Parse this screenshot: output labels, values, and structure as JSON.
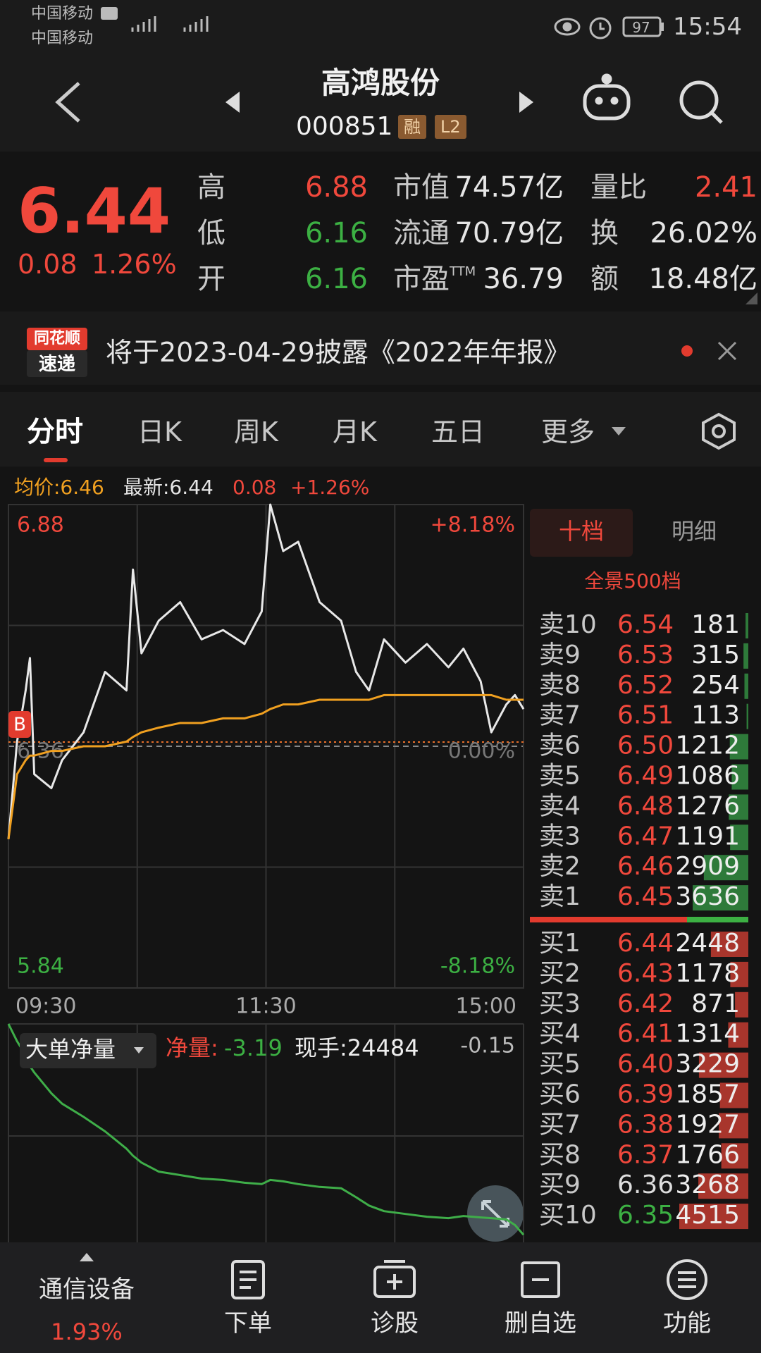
{
  "status_bar": {
    "carrier1": "中国移动",
    "carrier2": "中国移动",
    "battery": "97",
    "time": "15:54"
  },
  "header": {
    "title": "高鸿股份",
    "code": "000851",
    "badges": [
      "融",
      "L2"
    ]
  },
  "quote": {
    "price": "6.44",
    "change": "0.08",
    "change_pct": "1.26%",
    "rows": [
      [
        {
          "label": "高",
          "value": "6.88"
        },
        {
          "label": "市值",
          "value": "74.57亿"
        },
        {
          "label": "量比",
          "value": "2.41"
        }
      ],
      [
        {
          "label": "低",
          "value": "6.16"
        },
        {
          "label": "流通",
          "value": "70.79亿"
        },
        {
          "label": "换",
          "value": "26.02%"
        }
      ],
      [
        {
          "label": "开",
          "value": "6.16"
        },
        {
          "label": "市盈",
          "value": "36.79",
          "sup": "TTM"
        },
        {
          "label": "额",
          "value": "18.48亿"
        }
      ]
    ]
  },
  "notice": {
    "badge_top": "同花顺",
    "badge_bottom": "速递",
    "text": "将于2023-04-29披露《2022年年报》"
  },
  "tabs": [
    "分时",
    "日K",
    "周K",
    "月K",
    "五日",
    "更多"
  ],
  "chart_header": {
    "avg": "均价:6.46",
    "latest": "最新:6.44",
    "change": "0.08",
    "change_pct": "+1.26%"
  },
  "chart_data": [
    {
      "type": "line",
      "x": [
        "09:30",
        "09:34",
        "09:38",
        "09:40",
        "09:42",
        "09:50",
        "09:55",
        "10:05",
        "10:15",
        "10:25",
        "10:28",
        "10:32",
        "10:40",
        "10:50",
        "11:00",
        "11:10",
        "11:20",
        "11:28",
        "13:02",
        "13:08",
        "13:15",
        "13:25",
        "13:35",
        "13:42",
        "13:48",
        "13:55",
        "14:05",
        "14:15",
        "14:25",
        "14:32",
        "14:40",
        "14:45",
        "14:52",
        "14:56",
        "15:00"
      ],
      "series": [
        {
          "color": "#e8e8e8",
          "values": [
            6.16,
            6.37,
            6.48,
            6.55,
            6.3,
            6.27,
            6.33,
            6.39,
            6.52,
            6.48,
            6.74,
            6.56,
            6.63,
            6.67,
            6.59,
            6.61,
            6.58,
            6.65,
            6.88,
            6.78,
            6.8,
            6.67,
            6.63,
            6.52,
            6.48,
            6.59,
            6.54,
            6.58,
            6.53,
            6.57,
            6.5,
            6.39,
            6.45,
            6.47,
            6.44
          ]
        },
        {
          "color": "#f0a020",
          "values": [
            6.16,
            6.3,
            6.33,
            6.34,
            6.34,
            6.35,
            6.35,
            6.36,
            6.36,
            6.37,
            6.38,
            6.39,
            6.4,
            6.41,
            6.41,
            6.42,
            6.42,
            6.43,
            6.44,
            6.45,
            6.45,
            6.46,
            6.46,
            6.46,
            6.46,
            6.47,
            6.47,
            6.47,
            6.47,
            6.47,
            6.47,
            6.47,
            6.46,
            6.46,
            6.46
          ]
        }
      ],
      "ylim": [
        5.84,
        6.88
      ],
      "yticks": [
        5.84,
        6.1,
        6.36,
        6.62,
        6.88
      ],
      "prev_close": 6.36,
      "pct_labels": [
        "+8.18%",
        "0.00%",
        "-8.18%"
      ],
      "xticks": [
        "09:30",
        "11:30",
        "15:00"
      ],
      "marker": "B"
    },
    {
      "type": "line",
      "title": "大单净量",
      "net_label": "净量:",
      "net_value": "-3.19",
      "hand": "现手:24484",
      "x": [
        "09:30",
        "09:34",
        "09:38",
        "09:40",
        "09:42",
        "09:50",
        "09:55",
        "10:05",
        "10:15",
        "10:25",
        "10:28",
        "10:32",
        "10:40",
        "10:50",
        "11:00",
        "11:10",
        "11:20",
        "11:28",
        "13:02",
        "13:08",
        "13:15",
        "13:25",
        "13:35",
        "13:42",
        "13:48",
        "13:55",
        "14:05",
        "14:15",
        "14:25",
        "14:32",
        "14:40",
        "14:45",
        "14:52",
        "14:56",
        "15:00"
      ],
      "series": [
        {
          "color": "#3fae49",
          "values": [
            -0.15,
            -0.4,
            -0.6,
            -0.76,
            -0.85,
            -1.15,
            -1.3,
            -1.49,
            -1.7,
            -1.95,
            -2.05,
            -2.15,
            -2.28,
            -2.33,
            -2.38,
            -2.4,
            -2.44,
            -2.46,
            -2.4,
            -2.42,
            -2.46,
            -2.5,
            -2.52,
            -2.65,
            -2.77,
            -2.85,
            -2.89,
            -2.93,
            -2.95,
            -2.92,
            -2.94,
            -2.95,
            -2.97,
            -3.05,
            -3.19
          ]
        }
      ],
      "ylim": [
        -3.3,
        -0.15
      ]
    }
  ],
  "order_book": {
    "tabs": [
      "十档",
      "明细"
    ],
    "depth_link": "全景500档",
    "asks": [
      {
        "label": "卖10",
        "price": "6.54",
        "volume": 181
      },
      {
        "label": "卖9",
        "price": "6.53",
        "volume": 315
      },
      {
        "label": "卖8",
        "price": "6.52",
        "volume": 254
      },
      {
        "label": "卖7",
        "price": "6.51",
        "volume": 113
      },
      {
        "label": "卖6",
        "price": "6.50",
        "volume": 1212
      },
      {
        "label": "卖5",
        "price": "6.49",
        "volume": 1086
      },
      {
        "label": "卖4",
        "price": "6.48",
        "volume": 1276
      },
      {
        "label": "卖3",
        "price": "6.47",
        "volume": 1191
      },
      {
        "label": "卖2",
        "price": "6.46",
        "volume": 2909
      },
      {
        "label": "卖1",
        "price": "6.45",
        "volume": 3636
      }
    ],
    "bids": [
      {
        "label": "买1",
        "price": "6.44",
        "volume": 2448
      },
      {
        "label": "买2",
        "price": "6.43",
        "volume": 1178
      },
      {
        "label": "买3",
        "price": "6.42",
        "volume": 871
      },
      {
        "label": "买4",
        "price": "6.41",
        "volume": 1314
      },
      {
        "label": "买5",
        "price": "6.40",
        "volume": 3229
      },
      {
        "label": "买6",
        "price": "6.39",
        "volume": 1857
      },
      {
        "label": "买7",
        "price": "6.38",
        "volume": 1927
      },
      {
        "label": "买8",
        "price": "6.37",
        "volume": 1766
      },
      {
        "label": "买9",
        "price": "6.36",
        "volume": 3268
      },
      {
        "label": "买10",
        "price": "6.35",
        "volume": 4515
      }
    ]
  },
  "bottom_nav": {
    "sector": "通信设备",
    "sector_change": "1.93%",
    "items": [
      "下单",
      "诊股",
      "删自选",
      "功能"
    ]
  }
}
